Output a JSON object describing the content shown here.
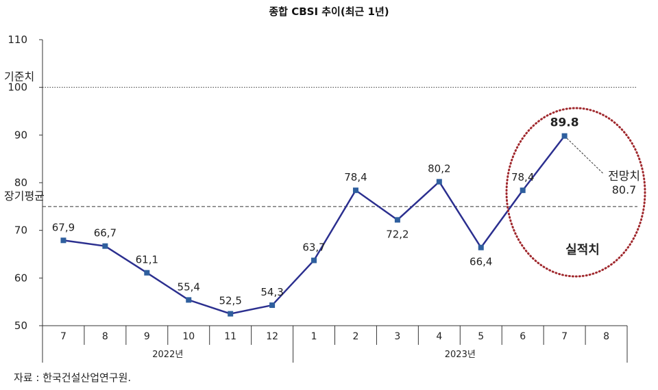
{
  "chart_data": {
    "type": "line",
    "title": "종합 CBSI 추이(최근 1년)",
    "categories": [
      "7",
      "8",
      "9",
      "10",
      "11",
      "12",
      "1",
      "2",
      "3",
      "4",
      "5",
      "6",
      "7",
      "8"
    ],
    "year_groups": [
      {
        "label": "2022년",
        "months": [
          "7",
          "8",
          "9",
          "10",
          "11",
          "12"
        ]
      },
      {
        "label": "2023년",
        "months": [
          "1",
          "2",
          "3",
          "4",
          "5",
          "6",
          "7",
          "8"
        ]
      }
    ],
    "series": [
      {
        "values": [
          67.9,
          66.7,
          61.1,
          55.4,
          52.5,
          54.3,
          63.7,
          78.4,
          72.2,
          80.2,
          66.4,
          78.4,
          89.8,
          null
        ],
        "labels": [
          "67,9",
          "66,7",
          "61,1",
          "55,4",
          "52,5",
          "54,3",
          "63,7",
          "78,4",
          "72,2",
          "80,2",
          "66,4",
          "78,4",
          "89.8",
          ""
        ],
        "color": "#2b2f8f"
      }
    ],
    "forecast": {
      "category": "8",
      "value": 80.7,
      "label_title": "전망치",
      "label_value": "80.7"
    },
    "yticks": [
      50,
      60,
      70,
      80,
      90,
      100,
      110
    ],
    "ylim": [
      50,
      110
    ],
    "reference_lines": [
      {
        "name": "기준치",
        "value": 100,
        "style": "dotted"
      },
      {
        "name": "장기평균",
        "value": 75,
        "style": "dashed"
      }
    ],
    "highlight": {
      "label": "실적치",
      "color": "#a0282d"
    },
    "grid": false
  },
  "source_text": "자료 : 한국건설산업연구원."
}
